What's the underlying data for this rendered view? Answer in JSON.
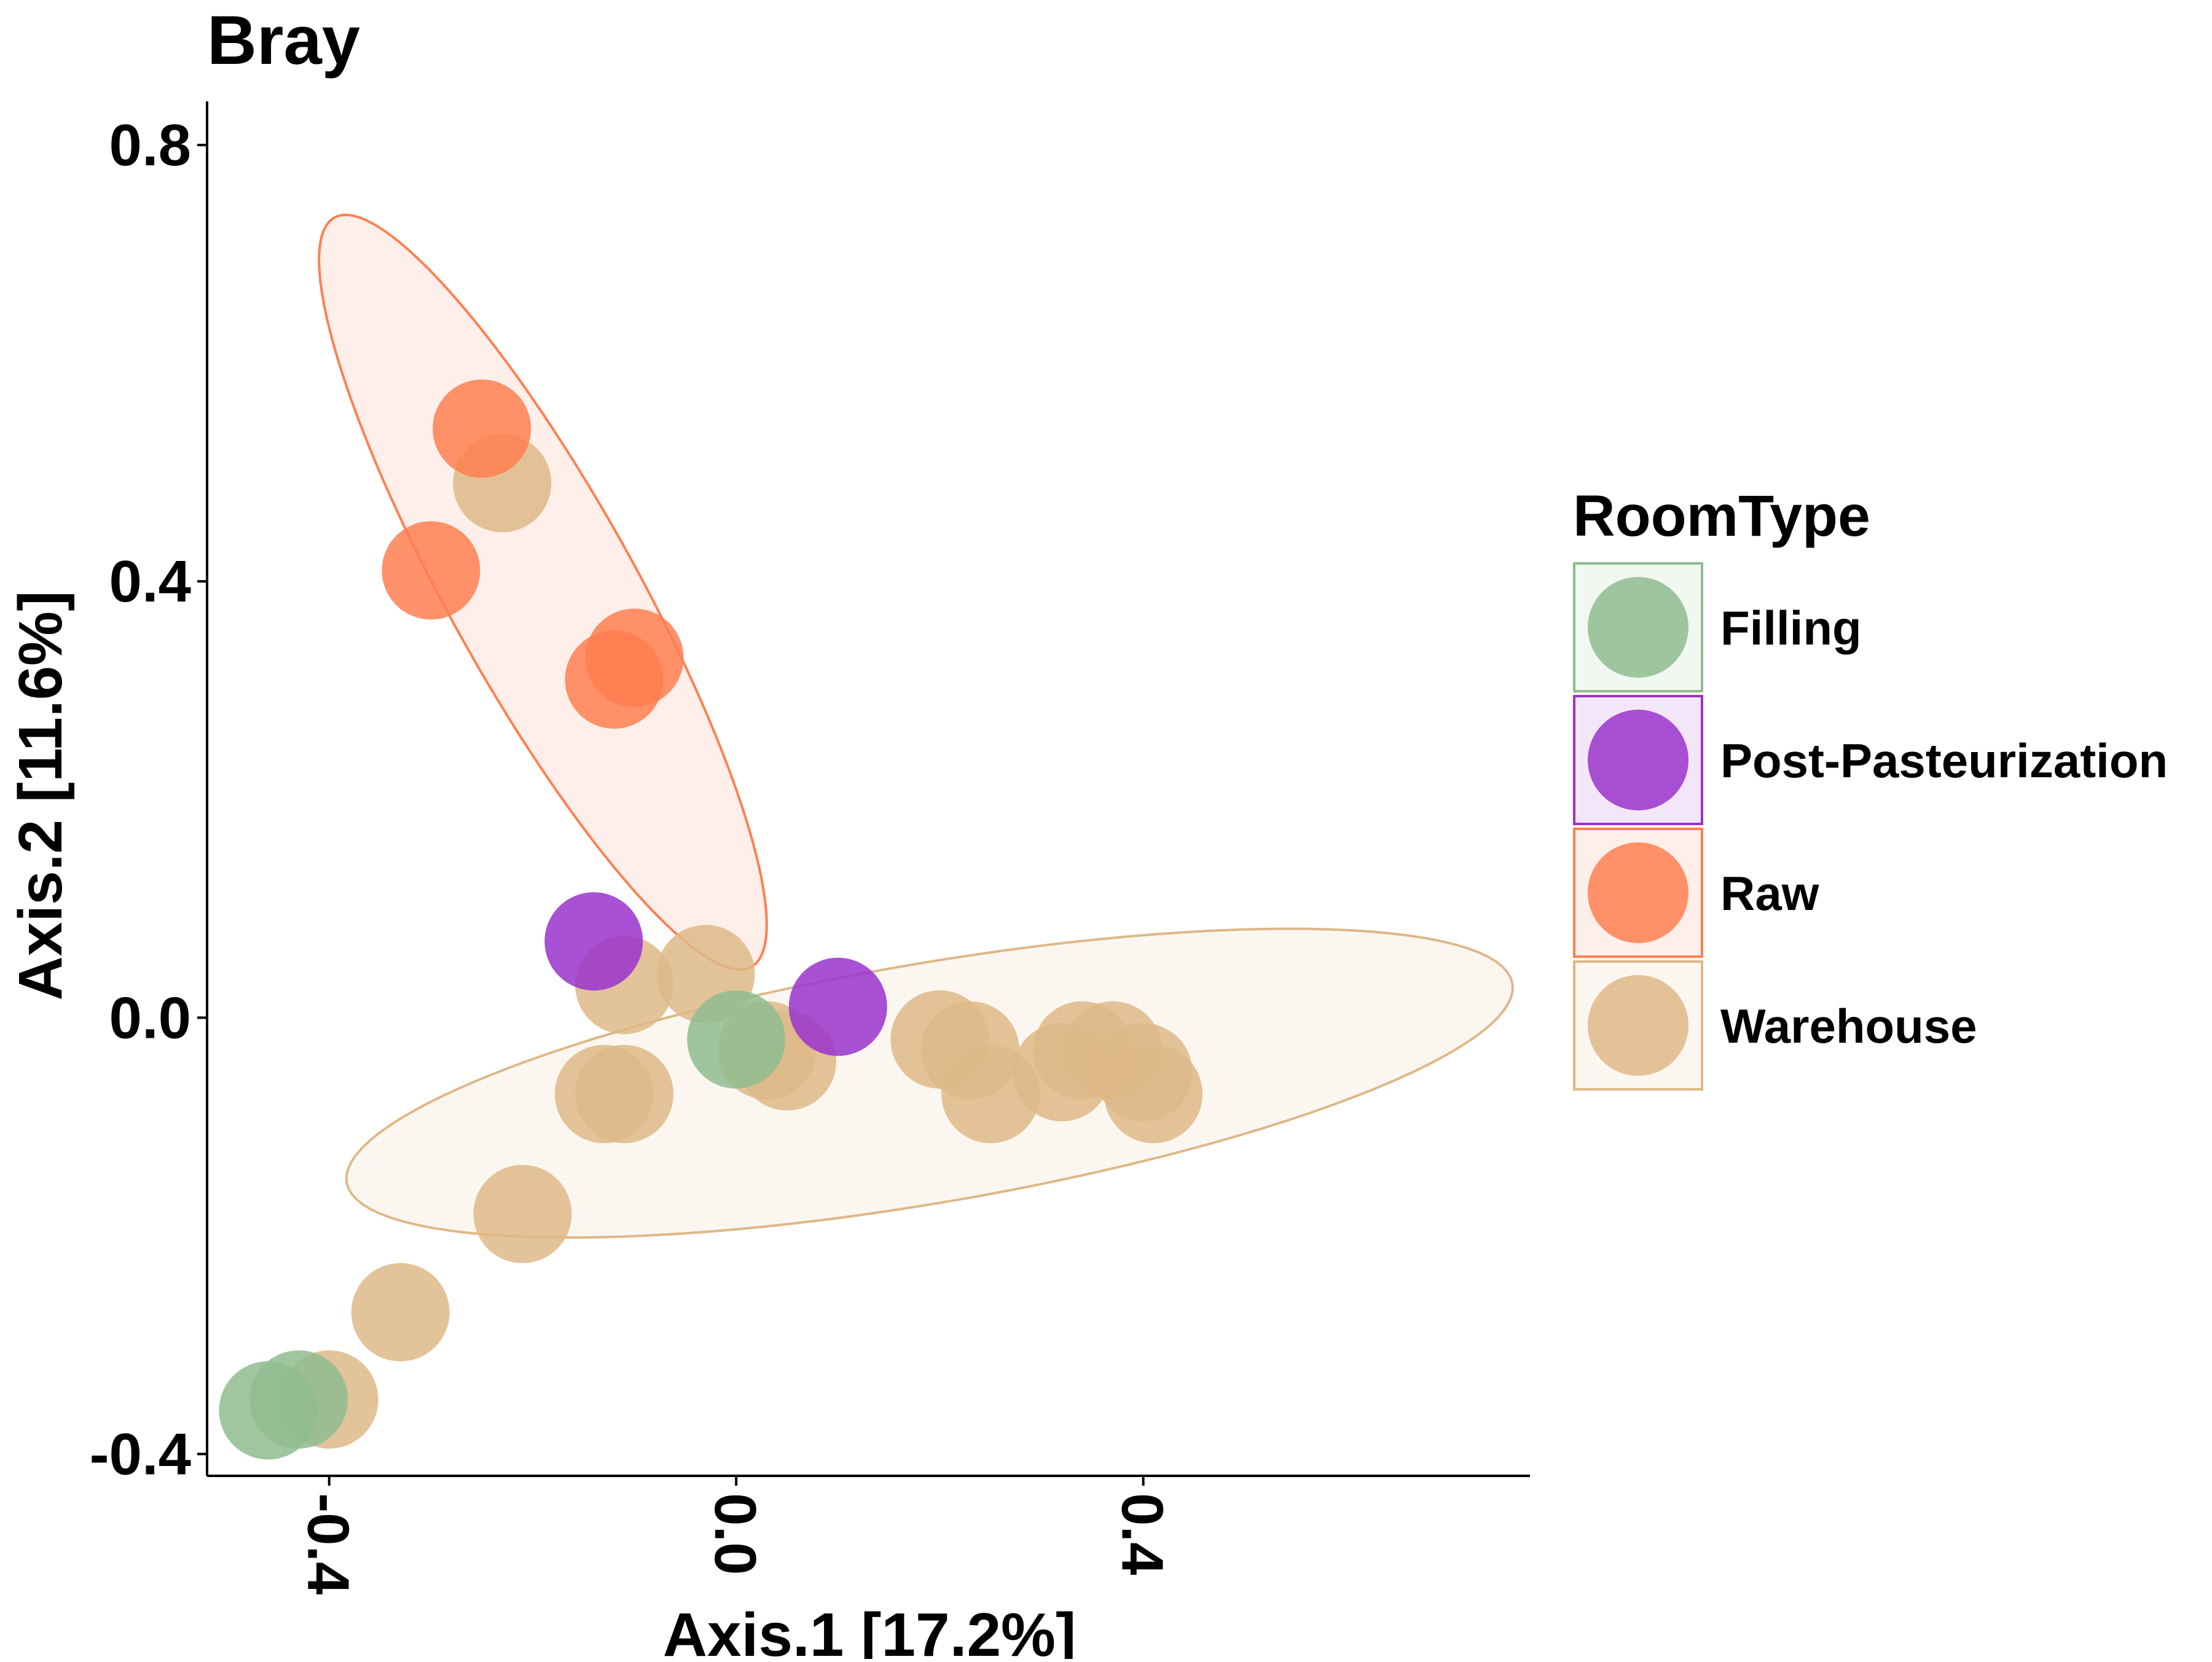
{
  "chart_data": {
    "type": "scatter",
    "title": "Bray",
    "xlabel": "Axis.1   [17.2%]",
    "ylabel": "Axis.2   [11.6%]",
    "xlim": [
      -0.52,
      0.78
    ],
    "ylim": [
      -0.42,
      0.84
    ],
    "x_ticks": [
      -0.4,
      0.0,
      0.4
    ],
    "x_tick_labels": [
      "-0.4",
      "0.0",
      "0.4"
    ],
    "y_ticks": [
      -0.4,
      0.0,
      0.4,
      0.8
    ],
    "y_tick_labels": [
      "-0.4",
      "0.0",
      "0.4",
      "0.8"
    ],
    "grid": false,
    "legend": {
      "title": "RoomType",
      "position": "right",
      "entries": [
        "Filling",
        "Post-Pasteurization",
        "Raw",
        "Warehouse"
      ]
    },
    "colors": {
      "Filling": "#8FBC8F",
      "Post-Pasteurization": "#9932CC",
      "Raw": "#FF7F50",
      "Warehouse": "#DEB887"
    },
    "ellipses": [
      {
        "series": "Raw",
        "center": [
          -0.19,
          0.39
        ],
        "semi_axes": [
          0.4,
          0.09
        ],
        "rotation_deg": -59
      },
      {
        "series": "Warehouse",
        "center": [
          0.19,
          -0.06
        ],
        "semi_axes": [
          0.58,
          0.11
        ],
        "rotation_deg": 9
      }
    ],
    "series": [
      {
        "name": "Warehouse",
        "points": [
          [
            -0.23,
            0.49
          ],
          [
            -0.11,
            0.03
          ],
          [
            -0.03,
            0.04
          ],
          [
            -0.13,
            -0.07
          ],
          [
            -0.11,
            -0.07
          ],
          [
            0.03,
            -0.03
          ],
          [
            0.05,
            -0.04
          ],
          [
            0.2,
            -0.02
          ],
          [
            0.23,
            -0.03
          ],
          [
            0.25,
            -0.07
          ],
          [
            0.34,
            -0.03
          ],
          [
            0.37,
            -0.03
          ],
          [
            0.32,
            -0.05
          ],
          [
            0.4,
            -0.05
          ],
          [
            0.41,
            -0.07
          ],
          [
            -0.21,
            -0.18
          ],
          [
            -0.33,
            -0.27
          ],
          [
            -0.4,
            -0.35
          ]
        ]
      },
      {
        "name": "Raw",
        "points": [
          [
            -0.25,
            0.54
          ],
          [
            -0.3,
            0.41
          ],
          [
            -0.1,
            0.33
          ],
          [
            -0.12,
            0.31
          ]
        ]
      },
      {
        "name": "Post-Pasteurization",
        "points": [
          [
            -0.14,
            0.07
          ],
          [
            0.1,
            0.01
          ]
        ]
      },
      {
        "name": "Filling",
        "points": [
          [
            0.0,
            -0.02
          ],
          [
            -0.43,
            -0.35
          ],
          [
            -0.46,
            -0.36
          ]
        ]
      }
    ]
  }
}
